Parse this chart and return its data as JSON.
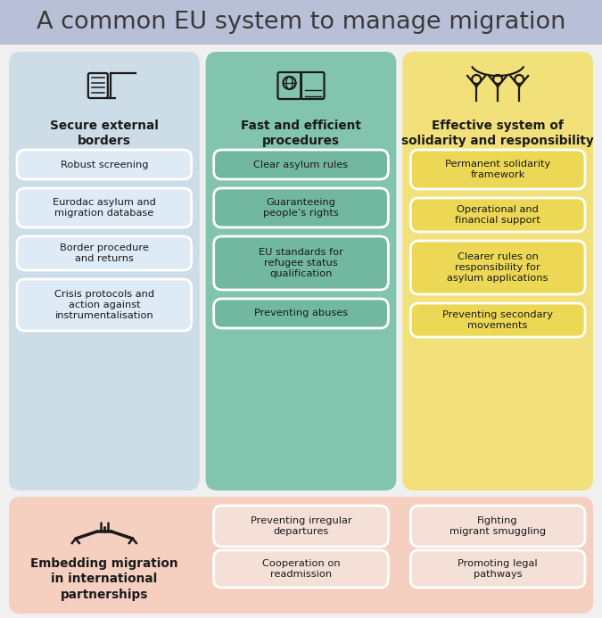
{
  "title": "A common EU system to manage migration",
  "title_bg": "#b8c0d8",
  "title_color": "#3a3a3a",
  "bg_color": "#f0f0f0",
  "col1_bg": "#ccdde8",
  "col2_bg": "#82c4ae",
  "col3_bg": "#f2e07a",
  "bottom_bg": "#f5cfc0",
  "col1_title": "Secure external\nborders",
  "col2_title": "Fast and efficient\nprocedures",
  "col3_title": "Effective system of\nsolidarity and responsibility",
  "col1_items": [
    "Robust screening",
    "Eurodac asylum and\nmigration database",
    "Border procedure\nand returns",
    "Crisis protocols and\naction against\ninstrumentalisation"
  ],
  "col2_items": [
    "Clear asylum rules",
    "Guaranteeing\npeople’s rights",
    "EU standards for\nrefugee status\nqualification",
    "Preventing abuses"
  ],
  "col3_items": [
    "Permanent solidarity\nframework",
    "Operational and\nfinancial support",
    "Clearer rules on\nresponsibility for\nasylum applications",
    "Preventing secondary\nmovements"
  ],
  "bottom_title": "Embedding migration\nin international\npartnerships",
  "bottom_col2_items": [
    "Preventing irregular\ndepartures",
    "Cooperation on\nreadmission"
  ],
  "bottom_col3_items": [
    "Fighting\nmigrant smuggling",
    "Promoting legal\npathways"
  ],
  "item_box_col1": "#deeaf5",
  "item_box_col2": "#72b8a0",
  "item_box_col3": "#edd855",
  "item_box_bottom": "#f5e0d8",
  "text_dark": "#1a1a1a",
  "icon_color": "#1a1a1a"
}
